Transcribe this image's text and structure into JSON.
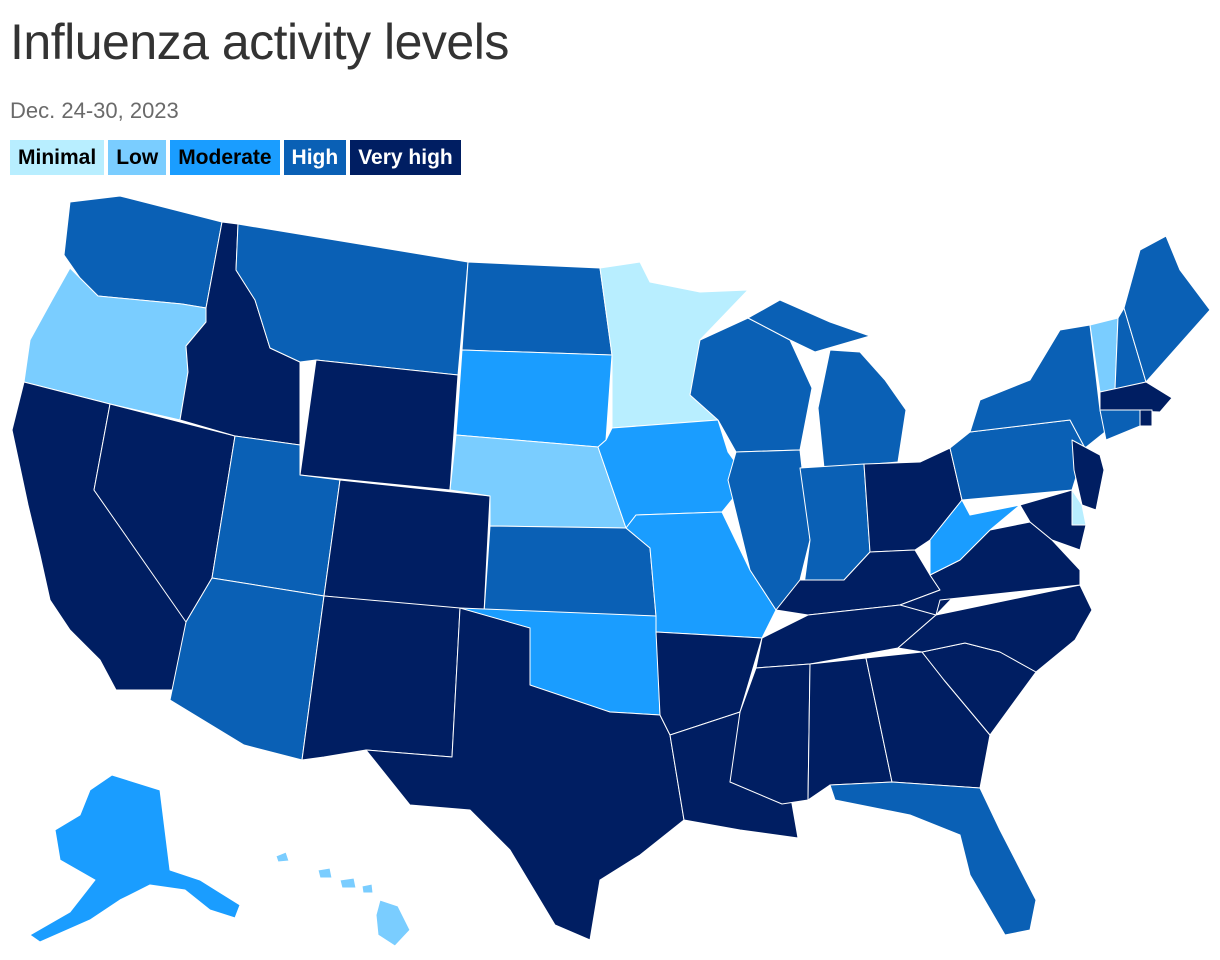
{
  "title": "Influenza activity levels",
  "subtitle": "Dec. 24-30, 2023",
  "legend": [
    {
      "key": "minimal",
      "label": "Minimal",
      "color": "#b8eeff",
      "text_color": "#000000"
    },
    {
      "key": "low",
      "label": "Low",
      "color": "#7acdff",
      "text_color": "#000000"
    },
    {
      "key": "moderate",
      "label": "Moderate",
      "color": "#1a9dff",
      "text_color": "#000000"
    },
    {
      "key": "high",
      "label": "High",
      "color": "#0a60b5",
      "text_color": "#ffffff"
    },
    {
      "key": "very_high",
      "label": "Very high",
      "color": "#001e62",
      "text_color": "#ffffff"
    }
  ],
  "states": {
    "WA": "high",
    "OR": "low",
    "CA": "very_high",
    "NV": "very_high",
    "ID": "very_high",
    "MT": "high",
    "WY": "very_high",
    "UT": "high",
    "AZ": "high",
    "CO": "very_high",
    "NM": "very_high",
    "ND": "high",
    "SD": "moderate",
    "NE": "low",
    "KS": "high",
    "OK": "moderate",
    "TX": "very_high",
    "MN": "minimal",
    "IA": "moderate",
    "MO": "moderate",
    "AR": "very_high",
    "LA": "very_high",
    "WI": "high",
    "IL": "high",
    "MI": "high",
    "IN": "high",
    "OH": "very_high",
    "KY": "very_high",
    "TN": "very_high",
    "MS": "very_high",
    "AL": "very_high",
    "GA": "very_high",
    "FL": "high",
    "SC": "very_high",
    "NC": "very_high",
    "VA": "very_high",
    "WV": "moderate",
    "PA": "high",
    "NY": "high",
    "VT": "low",
    "NH": "high",
    "ME": "high",
    "MA": "very_high",
    "RI": "very_high",
    "CT": "high",
    "NJ": "very_high",
    "DE": "minimal",
    "MD": "very_high",
    "AK": "moderate",
    "HI": "low"
  }
}
